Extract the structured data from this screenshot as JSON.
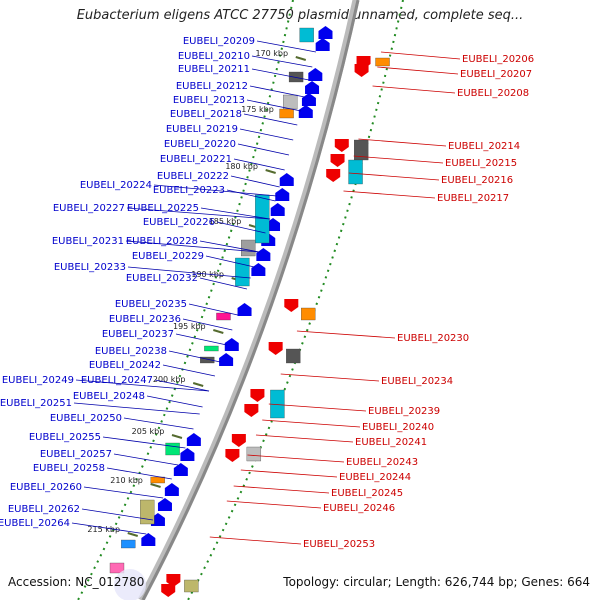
{
  "title": "Eubacterium eligens ATCC 27750 plasmid unnamed, complete seq...",
  "footer": {
    "accession": "Accession: NC_012780",
    "summary": "Topology: circular; Length: 626,744 bp; Genes: 664"
  },
  "colors": {
    "forward": "#0000ee",
    "reverse": "#ee0000",
    "backbone": "#888888",
    "gc_dots": "#228b22"
  },
  "ticks": [
    "170 kbp",
    "175 kbp",
    "180 kbp",
    "185 kbp",
    "190 kbp",
    "195 kbp",
    "200 kbp",
    "205 kbp",
    "210 kbp",
    "215 kbp"
  ],
  "forward_genes": [
    "EUBELI_20209",
    "EUBELI_20210",
    "EUBELI_20211",
    "EUBELI_20212",
    "EUBELI_20213",
    "EUBELI_20218",
    "EUBELI_20219",
    "EUBELI_20220",
    "EUBELI_20221",
    "EUBELI_20222",
    "EUBELI_20224",
    "EUBELI_20223",
    "EUBELI_20227",
    "EUBELI_20225",
    "EUBELI_20226",
    "EUBELI_20231",
    "EUBELI_20228",
    "EUBELI_20229",
    "EUBELI_20233",
    "EUBELI_20232",
    "EUBELI_20235",
    "EUBELI_20236",
    "EUBELI_20237",
    "EUBELI_20238",
    "EUBELI_20242",
    "EUBELI_20249",
    "EUBELI_20247",
    "EUBELI_20248",
    "EUBELI_20251",
    "EUBELI_20250",
    "EUBELI_20255",
    "EUBELI_20257",
    "EUBELI_20258",
    "EUBELI_20260",
    "EUBELI_20262",
    "EUBELI_20264"
  ],
  "reverse_genes": [
    "EUBELI_20206",
    "EUBELI_20207",
    "EUBELI_20208",
    "EUBELI_20214",
    "EUBELI_20215",
    "EUBELI_20216",
    "EUBELI_20217",
    "EUBELI_20230",
    "EUBELI_20234",
    "EUBELI_20239",
    "EUBELI_20240",
    "EUBELI_20241",
    "EUBELI_20243",
    "EUBELI_20244",
    "EUBELI_20245",
    "EUBELI_20246",
    "EUBELI_20253"
  ]
}
